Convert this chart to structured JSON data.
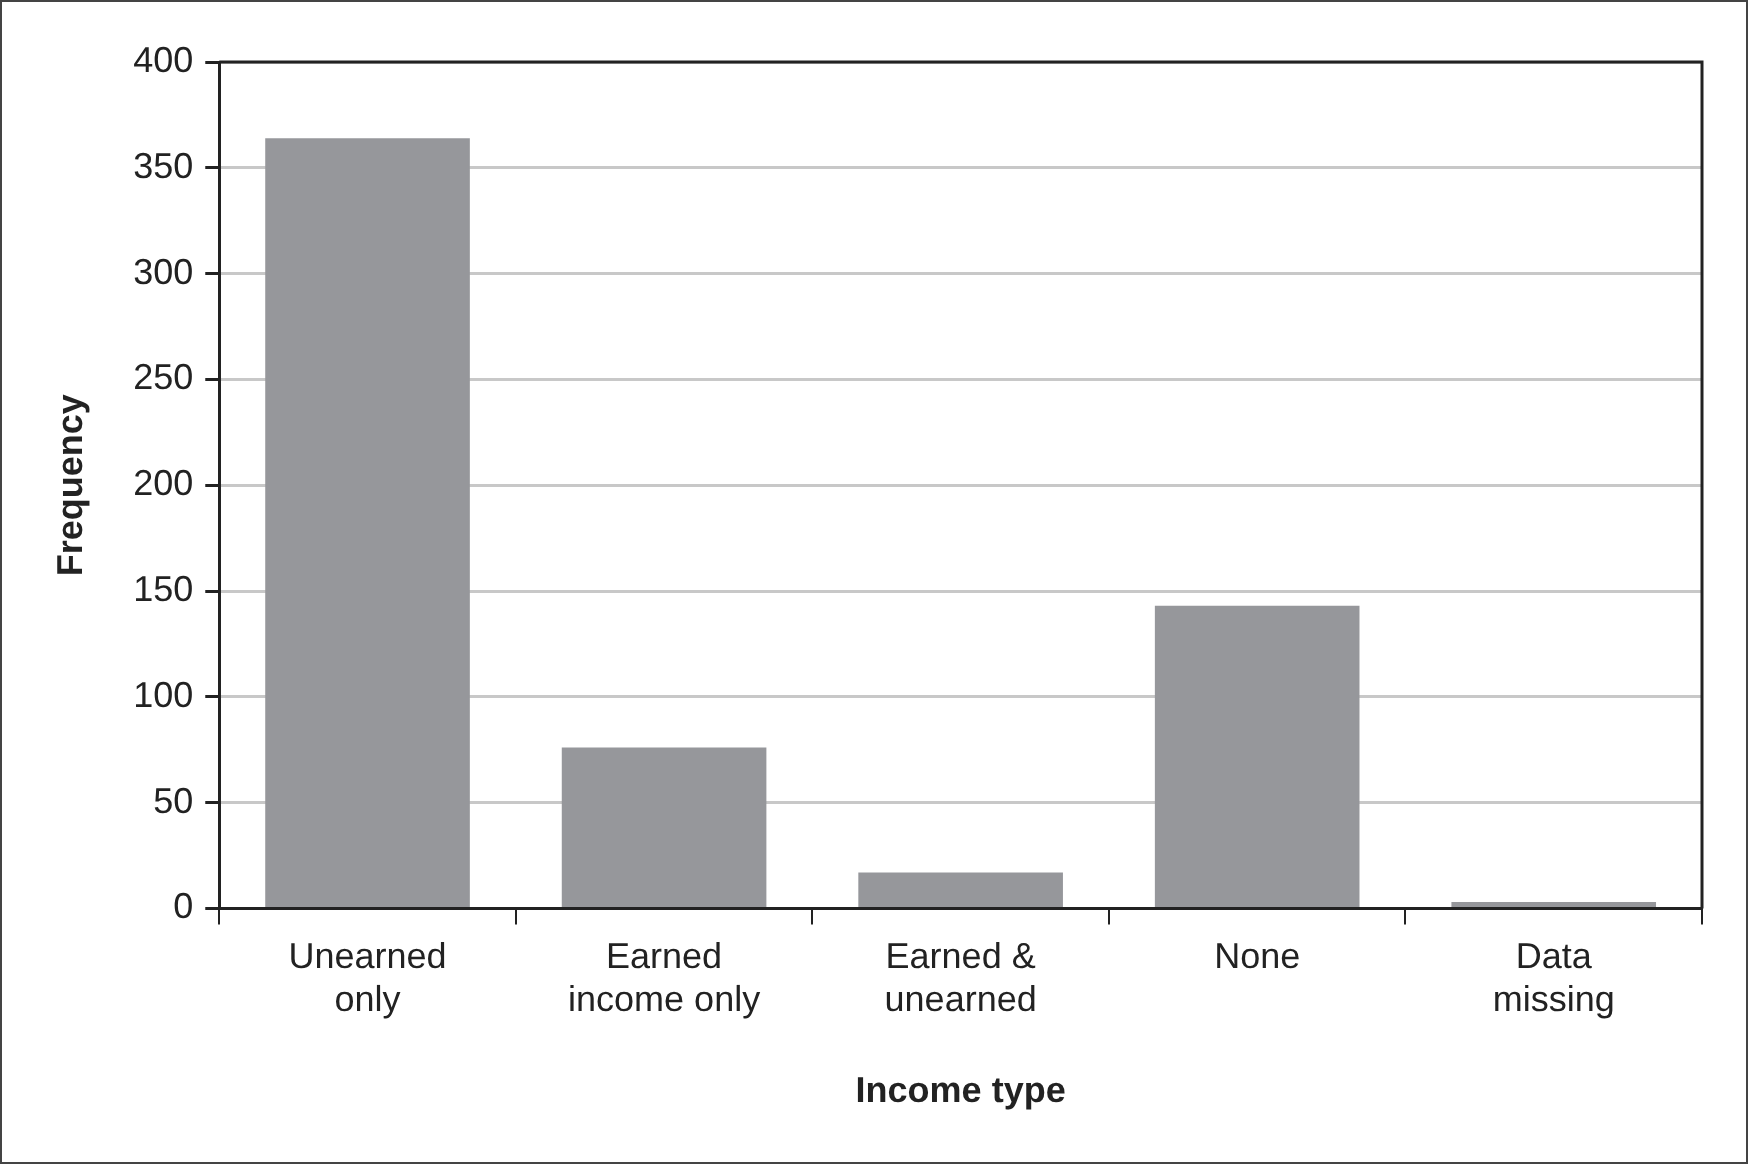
{
  "chart_data": {
    "type": "bar",
    "xlabel": "Income type",
    "ylabel": "Frequency",
    "categories": [
      "Unearned\nonly",
      "Earned\nincome only",
      "Earned &\nunearned",
      "None",
      "Data\nmissing"
    ],
    "values": [
      364,
      76,
      17,
      143,
      3
    ],
    "color": "#96979b",
    "ylim": [
      0,
      400
    ],
    "yticks": [
      0,
      50,
      100,
      150,
      200,
      250,
      300,
      350,
      400
    ],
    "grid": "y",
    "legend": false
  }
}
